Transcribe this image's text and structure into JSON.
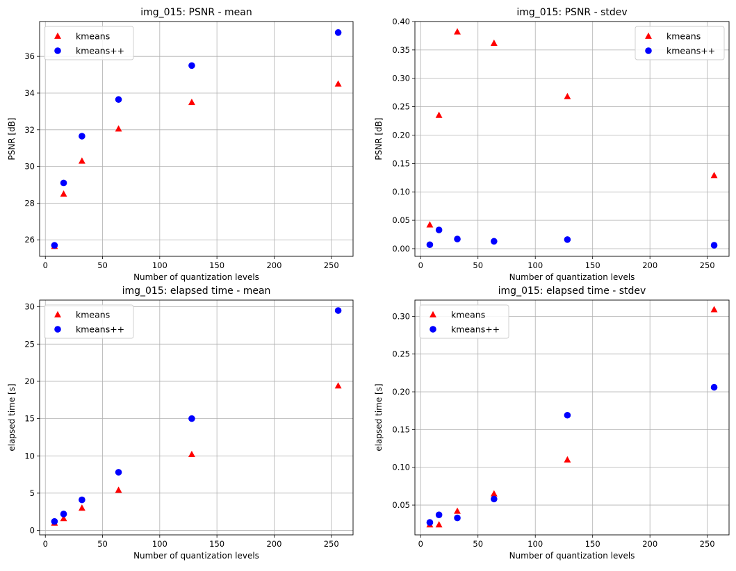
{
  "chart_data": [
    {
      "type": "scatter",
      "title": "img_015: PSNR - mean",
      "xlabel": "Number of quantization levels",
      "ylabel": "PSNR [dB]",
      "xlim": [
        -5,
        269
      ],
      "ylim": [
        25.1,
        37.9
      ],
      "xticks": [
        0,
        50,
        100,
        150,
        200,
        250
      ],
      "yticks": [
        26,
        28,
        30,
        32,
        34,
        36
      ],
      "ytick_labels": [
        "26",
        "28",
        "30",
        "32",
        "34",
        "36"
      ],
      "grid": true,
      "legend_position": "upper-left",
      "series": [
        {
          "name": "kmeans",
          "marker": "triangle",
          "color": "#ff0000",
          "x": [
            8,
            16,
            32,
            64,
            128,
            256
          ],
          "y": [
            25.65,
            28.5,
            30.3,
            32.05,
            33.5,
            34.5
          ]
        },
        {
          "name": "kmeans++",
          "marker": "circle",
          "color": "#0000ff",
          "x": [
            8,
            16,
            32,
            64,
            128,
            256
          ],
          "y": [
            25.7,
            29.1,
            31.65,
            33.65,
            35.5,
            37.3
          ]
        }
      ]
    },
    {
      "type": "scatter",
      "title": "img_015: PSNR - stdev",
      "xlabel": "Number of quantization levels",
      "ylabel": "PSNR [dB]",
      "xlim": [
        -5,
        269
      ],
      "ylim": [
        -0.0135,
        0.4
      ],
      "xticks": [
        0,
        50,
        100,
        150,
        200,
        250
      ],
      "yticks": [
        0,
        0.05,
        0.1,
        0.15,
        0.2,
        0.25,
        0.3,
        0.35,
        0.4
      ],
      "ytick_labels": [
        "0.00",
        "0.05",
        "0.10",
        "0.15",
        "0.20",
        "0.25",
        "0.30",
        "0.35",
        "0.40"
      ],
      "grid": true,
      "legend_position": "upper-right",
      "series": [
        {
          "name": "kmeans",
          "marker": "triangle",
          "color": "#ff0000",
          "x": [
            8,
            16,
            32,
            64,
            128,
            256
          ],
          "y": [
            0.042,
            0.235,
            0.382,
            0.362,
            0.268,
            0.129
          ]
        },
        {
          "name": "kmeans++",
          "marker": "circle",
          "color": "#0000ff",
          "x": [
            8,
            16,
            32,
            64,
            128,
            256
          ],
          "y": [
            0.007,
            0.033,
            0.017,
            0.013,
            0.016,
            0.006
          ]
        }
      ]
    },
    {
      "type": "scatter",
      "title": "img_015: elapsed time - mean",
      "xlabel": "Number of quantization levels",
      "ylabel": "elapsed time [s]",
      "xlim": [
        -5,
        269
      ],
      "ylim": [
        -0.6,
        30.9
      ],
      "xticks": [
        0,
        50,
        100,
        150,
        200,
        250
      ],
      "yticks": [
        0,
        5,
        10,
        15,
        20,
        25,
        30
      ],
      "ytick_labels": [
        "0",
        "5",
        "10",
        "15",
        "20",
        "25",
        "30"
      ],
      "grid": true,
      "legend_position": "upper-left",
      "series": [
        {
          "name": "kmeans",
          "marker": "triangle",
          "color": "#ff0000",
          "x": [
            8,
            16,
            32,
            64,
            128,
            256
          ],
          "y": [
            1.0,
            1.6,
            3.0,
            5.4,
            10.2,
            19.4
          ]
        },
        {
          "name": "kmeans++",
          "marker": "circle",
          "color": "#0000ff",
          "x": [
            8,
            16,
            32,
            64,
            128,
            256
          ],
          "y": [
            1.2,
            2.2,
            4.1,
            7.8,
            15.0,
            29.5
          ]
        }
      ]
    },
    {
      "type": "scatter",
      "title": "img_015: elapsed time - stdev",
      "xlabel": "Number of quantization levels",
      "ylabel": "elapsed time [s]",
      "xlim": [
        -5,
        269
      ],
      "ylim": [
        0.0105,
        0.3215
      ],
      "xticks": [
        0,
        50,
        100,
        150,
        200,
        250
      ],
      "yticks": [
        0.05,
        0.1,
        0.15,
        0.2,
        0.25,
        0.3
      ],
      "ytick_labels": [
        "0.05",
        "0.10",
        "0.15",
        "0.20",
        "0.25",
        "0.30"
      ],
      "grid": true,
      "legend_position": "upper-left",
      "series": [
        {
          "name": "kmeans",
          "marker": "triangle",
          "color": "#ff0000",
          "x": [
            8,
            16,
            32,
            64,
            128,
            256
          ],
          "y": [
            0.024,
            0.024,
            0.042,
            0.065,
            0.11,
            0.309
          ]
        },
        {
          "name": "kmeans++",
          "marker": "circle",
          "color": "#0000ff",
          "x": [
            8,
            16,
            32,
            64,
            128,
            256
          ],
          "y": [
            0.027,
            0.037,
            0.033,
            0.058,
            0.169,
            0.206
          ]
        }
      ]
    }
  ]
}
